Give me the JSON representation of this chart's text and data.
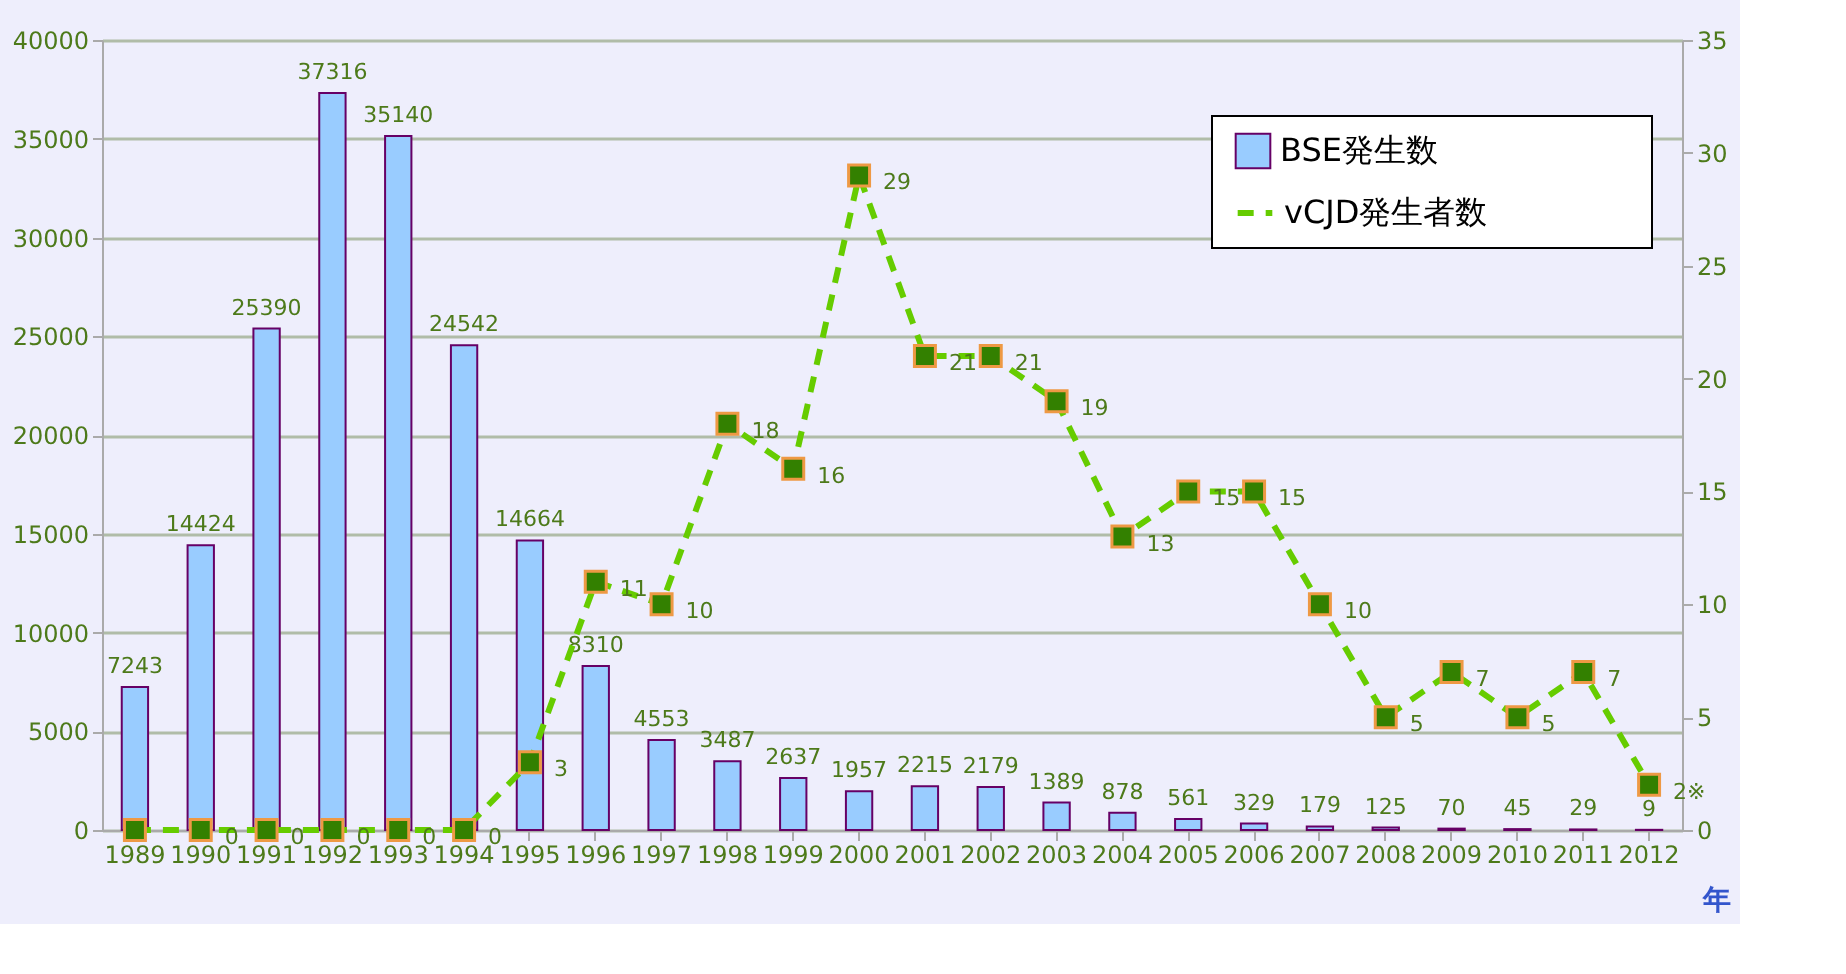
{
  "chart_data": {
    "type": "bar",
    "xlabel": "年",
    "categories": [
      "1989",
      "1990",
      "1991",
      "1992",
      "1993",
      "1994",
      "1995",
      "1996",
      "1997",
      "1998",
      "1999",
      "2000",
      "2001",
      "2002",
      "2003",
      "2004",
      "2005",
      "2006",
      "2007",
      "2008",
      "2009",
      "2010",
      "2011",
      "2012"
    ],
    "series": [
      {
        "name": "BSE発生数",
        "color": "#99ccff",
        "values": [
          7243,
          14424,
          25390,
          37316,
          35140,
          24542,
          14664,
          8310,
          4553,
          3487,
          2637,
          1957,
          2215,
          2179,
          1389,
          878,
          561,
          329,
          179,
          125,
          70,
          45,
          29,
          9
        ]
      },
      {
        "name": "vCJD発生者数",
        "type": "line",
        "axis": "y2",
        "color": "#66cc00",
        "line_style": "dashed",
        "marker": "square",
        "values": [
          0,
          0,
          0,
          0,
          0,
          0,
          3,
          11,
          10,
          18,
          16,
          29,
          21,
          21,
          19,
          13,
          15,
          15,
          10,
          5,
          7,
          5,
          7,
          2
        ],
        "value_labels": [
          null,
          "0",
          "0",
          "0",
          "0",
          "0",
          "3",
          "11",
          "10",
          "18",
          "16",
          "29",
          "21",
          "21",
          "19",
          "13",
          "15",
          "15",
          "10",
          "5",
          "7",
          "5",
          "7",
          "2※"
        ]
      }
    ],
    "data_labels": true,
    "ylim": [
      0,
      40000
    ],
    "yticks": [
      0,
      5000,
      10000,
      15000,
      20000,
      25000,
      30000,
      35000,
      40000
    ],
    "y2lim": [
      0,
      35
    ],
    "y2ticks": [
      0,
      5,
      10,
      15,
      20,
      25,
      30,
      35
    ],
    "grid": "y",
    "legend": "top right"
  }
}
